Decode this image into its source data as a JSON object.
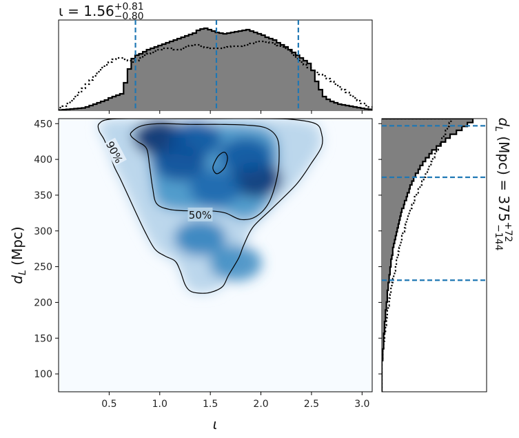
{
  "chart_data": [
    {
      "type": "heatmap",
      "subtype": "2d-density-with-credible-contours",
      "xlabel": "ι",
      "ylabel": "d_L (Mpc)",
      "xlim": [
        0.0,
        3.1
      ],
      "ylim": [
        75,
        457
      ],
      "xticks": [
        0.5,
        1.0,
        1.5,
        2.0,
        2.5,
        3.0
      ],
      "xtick_labels": [
        "0.5",
        "1.0",
        "1.5",
        "2.0",
        "2.5",
        "3.0"
      ],
      "yticks": [
        100,
        150,
        200,
        250,
        300,
        350,
        400,
        450
      ],
      "ytick_labels": [
        "100",
        "150",
        "200",
        "250",
        "300",
        "350",
        "400",
        "450"
      ],
      "colormap": "Blues",
      "density_peaks": [
        {
          "x": 1.0,
          "y": 430,
          "weight": 1.0
        },
        {
          "x": 1.35,
          "y": 428,
          "weight": 0.7
        },
        {
          "x": 1.2,
          "y": 395,
          "weight": 0.75
        },
        {
          "x": 1.95,
          "y": 372,
          "weight": 0.95
        },
        {
          "x": 1.85,
          "y": 405,
          "weight": 0.7
        },
        {
          "x": 1.55,
          "y": 360,
          "weight": 0.55
        },
        {
          "x": 1.4,
          "y": 290,
          "weight": 0.35
        },
        {
          "x": 1.75,
          "y": 255,
          "weight": 0.25
        }
      ],
      "contours": [
        {
          "label": "50%",
          "label_at": [
            1.4,
            322
          ],
          "points": [
            [
              0.72,
              438
            ],
            [
              0.82,
              447
            ],
            [
              1.0,
              450
            ],
            [
              1.3,
              449
            ],
            [
              1.6,
              449
            ],
            [
              1.85,
              448
            ],
            [
              2.05,
              444
            ],
            [
              2.16,
              430
            ],
            [
              2.18,
              405
            ],
            [
              2.16,
              375
            ],
            [
              2.08,
              340
            ],
            [
              1.95,
              320
            ],
            [
              1.8,
              316
            ],
            [
              1.65,
              325
            ],
            [
              1.5,
              328
            ],
            [
              1.3,
              328
            ],
            [
              1.1,
              330
            ],
            [
              0.97,
              338
            ],
            [
              0.93,
              360
            ],
            [
              0.9,
              390
            ],
            [
              0.87,
              415
            ],
            [
              0.78,
              425
            ],
            [
              0.72,
              432
            ]
          ]
        },
        {
          "label": "",
          "points": [
            [
              1.53,
              392
            ],
            [
              1.58,
              405
            ],
            [
              1.64,
              410
            ],
            [
              1.67,
              402
            ],
            [
              1.64,
              388
            ],
            [
              1.57,
              380
            ],
            [
              1.53,
              385
            ]
          ]
        },
        {
          "label": "90%",
          "label_at": [
            0.55,
            410
          ],
          "points": [
            [
              0.4,
              450
            ],
            [
              0.5,
              456
            ],
            [
              0.8,
              457
            ],
            [
              1.2,
              457
            ],
            [
              1.6,
              457
            ],
            [
              2.0,
              457
            ],
            [
              2.3,
              456
            ],
            [
              2.54,
              450
            ],
            [
              2.6,
              436
            ],
            [
              2.6,
              418
            ],
            [
              2.5,
              395
            ],
            [
              2.35,
              365
            ],
            [
              2.1,
              330
            ],
            [
              1.92,
              305
            ],
            [
              1.83,
              280
            ],
            [
              1.78,
              262
            ],
            [
              1.68,
              238
            ],
            [
              1.62,
              222
            ],
            [
              1.5,
              214
            ],
            [
              1.38,
              213
            ],
            [
              1.3,
              216
            ],
            [
              1.25,
              225
            ],
            [
              1.2,
              245
            ],
            [
              1.15,
              258
            ],
            [
              1.05,
              265
            ],
            [
              0.95,
              275
            ],
            [
              0.85,
              300
            ],
            [
              0.75,
              330
            ],
            [
              0.62,
              370
            ],
            [
              0.55,
              390
            ],
            [
              0.5,
              410
            ],
            [
              0.45,
              428
            ],
            [
              0.4,
              440
            ]
          ]
        }
      ]
    },
    {
      "type": "histogram",
      "orientation": "vertical",
      "title": "ι = 1.56+0.81−0.80",
      "xlim": [
        0.0,
        3.1
      ],
      "bin_range": [
        0.0,
        3.1
      ],
      "filled_color": "#808080",
      "quantile_lines": [
        0.76,
        1.56,
        2.37
      ],
      "quantile_color": "#1f77b4",
      "series": [
        {
          "style": "filled-step",
          "values": [
            0.5,
            1,
            1.5,
            2,
            2.5,
            3,
            3.5,
            5,
            7,
            9,
            11,
            13,
            15,
            18,
            20,
            22,
            24,
            40,
            60,
            75,
            80,
            82,
            85,
            88,
            90,
            92,
            94,
            96,
            98,
            100,
            102,
            104,
            106,
            108,
            110,
            112,
            116,
            118,
            119,
            117,
            115,
            113,
            112,
            111,
            112,
            113,
            114,
            115,
            116,
            117,
            115,
            113,
            111,
            109,
            106,
            104,
            102,
            98,
            95,
            92,
            88,
            84,
            80,
            76,
            72,
            68,
            58,
            42,
            30,
            20,
            16,
            13,
            11,
            9,
            8,
            7,
            6,
            5,
            4,
            3,
            2,
            1.5
          ]
        },
        {
          "style": "dotted-step",
          "values": [
            4,
            6,
            10,
            14,
            20,
            26,
            32,
            38,
            44,
            50,
            56,
            62,
            66,
            70,
            74,
            76,
            76,
            74,
            72,
            70,
            72,
            76,
            80,
            82,
            84,
            86,
            88,
            90,
            90,
            90,
            88,
            88,
            90,
            92,
            94,
            95,
            95,
            93,
            91,
            90,
            90,
            90,
            90,
            91,
            92,
            93,
            93,
            93,
            94,
            95,
            97,
            99,
            100,
            100,
            99,
            98,
            96,
            94,
            92,
            90,
            86,
            80,
            75,
            70,
            66,
            62,
            58,
            55,
            52,
            50,
            46,
            42,
            38,
            34,
            30,
            26,
            22,
            18,
            14,
            10,
            7,
            5
          ]
        }
      ]
    },
    {
      "type": "histogram",
      "orientation": "horizontal",
      "side_label": "d_L (Mpc) = 375+72−144",
      "ylim": [
        75,
        457
      ],
      "bin_range": [
        75,
        457
      ],
      "filled_color": "#808080",
      "quantile_lines": [
        231,
        375,
        447
      ],
      "quantile_color": "#1f77b4",
      "series": [
        {
          "style": "filled-step",
          "values": [
            0,
            0,
            0,
            0,
            0,
            0,
            0,
            0,
            1,
            1,
            1,
            2,
            2,
            2,
            2,
            3,
            3,
            3,
            4,
            4,
            4,
            5,
            5,
            6,
            6,
            6,
            7,
            7,
            8,
            8,
            9,
            9,
            10,
            10,
            11,
            12,
            12,
            13,
            14,
            15,
            16,
            17,
            18,
            19,
            20,
            21,
            22,
            24,
            25,
            27,
            28,
            30,
            31,
            33,
            35,
            37,
            40,
            42,
            45,
            48,
            52,
            55,
            60,
            65,
            70,
            75,
            82,
            88,
            94,
            100
          ]
        },
        {
          "style": "dotted-step",
          "values": [
            0,
            0,
            0,
            0,
            0,
            0,
            0,
            0,
            1,
            1,
            1,
            2,
            2,
            3,
            3,
            4,
            4,
            5,
            5,
            6,
            6,
            7,
            8,
            8,
            9,
            10,
            10,
            11,
            12,
            13,
            14,
            15,
            16,
            16,
            17,
            18,
            19,
            20,
            21,
            22,
            23,
            25,
            26,
            27,
            28,
            30,
            31,
            33,
            35,
            36,
            38,
            40,
            42,
            44,
            46,
            48,
            50,
            52,
            54,
            56,
            58,
            60,
            62,
            64,
            66,
            68,
            70,
            72,
            74,
            76
          ]
        }
      ]
    }
  ]
}
